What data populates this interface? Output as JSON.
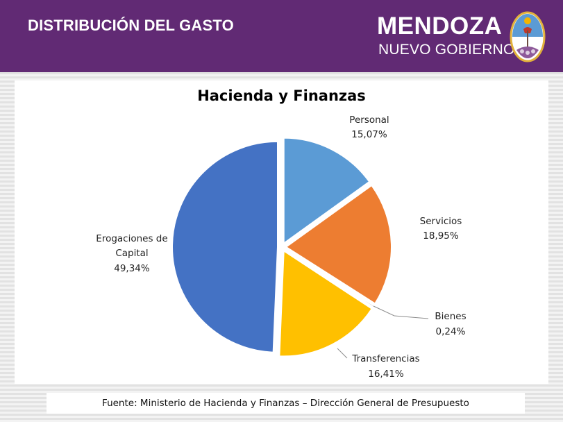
{
  "header": {
    "title": "DISTRIBUCIÓN DEL GASTO",
    "brand_main": "MENDOZA",
    "brand_sub": "NUEVO GOBIERNO",
    "seal_icon": "mendoza-coat-of-arms",
    "bg_color": "#612a74"
  },
  "chart_data": {
    "type": "pie",
    "title": "Hacienda y Finanzas",
    "categories": [
      "Personal",
      "Servicios",
      "Bienes",
      "Transferencias",
      "Erogaciones de Capital"
    ],
    "values": [
      15.07,
      18.95,
      0.24,
      16.41,
      49.34
    ],
    "value_labels": [
      "15,07%",
      "18,95%",
      "0,24%",
      "16,41%",
      "49,34%"
    ],
    "colors": [
      "#5b9bd5",
      "#ed7d31",
      "#a5a5a5",
      "#ffc000",
      "#4472c4"
    ],
    "exploded": true,
    "legend": "none"
  },
  "footer": {
    "source": "Fuente: Ministerio de Hacienda y Finanzas – Dirección General de Presupuesto"
  }
}
